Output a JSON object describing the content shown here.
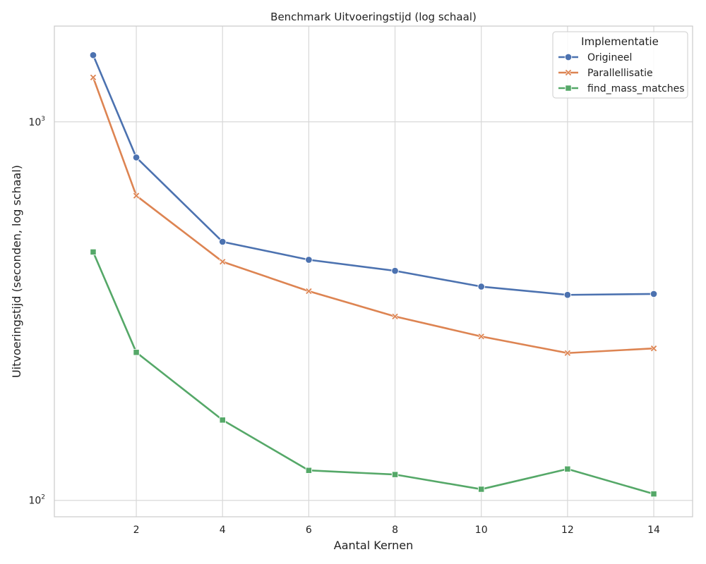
{
  "chart_data": {
    "type": "line",
    "title": "Benchmark Uitvoeringstijd (log schaal)",
    "xlabel": "Aantal Kernen",
    "ylabel": "Uitvoeringstijd (seconden, log schaal)",
    "y_scale": "log",
    "x_ticks": [
      2,
      4,
      6,
      8,
      10,
      12,
      14
    ],
    "y_ticks": [
      {
        "value": 100,
        "label": "10",
        "exp": "2"
      },
      {
        "value": 1000,
        "label": "10",
        "exp": "3"
      }
    ],
    "xlim": [
      0.1,
      14.9
    ],
    "ylim": [
      90.5,
      1790
    ],
    "grid": true,
    "legend": {
      "title": "Implementatie",
      "placement": "top-right"
    },
    "x": [
      1,
      2,
      4,
      6,
      8,
      10,
      12,
      14
    ],
    "series": [
      {
        "name": "Origineel",
        "color": "#4c72b0",
        "marker": "circle",
        "values": [
          1500,
          805,
          482,
          432,
          404,
          367,
          349,
          351
        ]
      },
      {
        "name": "Parallellisatie",
        "color": "#dd8452",
        "marker": "x",
        "values": [
          1310,
          638,
          427,
          357,
          306,
          271,
          245,
          252
        ]
      },
      {
        "name": "find_mass_matches",
        "color": "#55a868",
        "marker": "square",
        "values": [
          453,
          246,
          163,
          120,
          117,
          107,
          121,
          104
        ]
      }
    ]
  }
}
